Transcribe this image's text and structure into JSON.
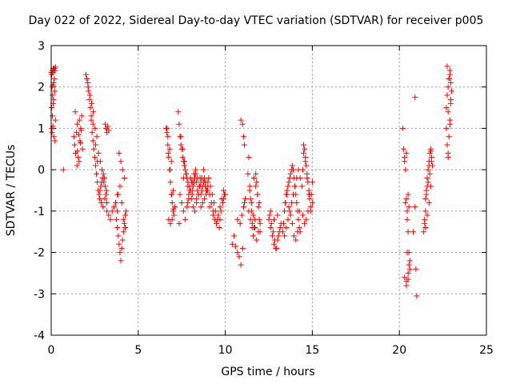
{
  "chart_data": {
    "type": "scatter",
    "title": "Day 022 of 2022, Sidereal Day-to-day VTEC variation (SDTVAR) for receiver p005",
    "xlabel": "GPS time / hours",
    "ylabel": "SDTVAR / TECUs",
    "xlim": [
      0,
      25
    ],
    "ylim": [
      -4,
      3
    ],
    "xticks": [
      0,
      5,
      10,
      15,
      20,
      25
    ],
    "yticks": [
      -4,
      -3,
      -2,
      -1,
      0,
      1,
      2,
      3
    ],
    "grid": true,
    "marker": "+",
    "marker_color": "#ff0000",
    "series": [
      {
        "name": "SDTVAR",
        "x": [
          0.0,
          0.03,
          0.06,
          0.09,
          0.12,
          0.15,
          0.18,
          0.21,
          0.25,
          0.05,
          0.1,
          0.15,
          0.08,
          0.12,
          0.2,
          0.03,
          0.05,
          0.1,
          0.15,
          0.22,
          0.02,
          0.07,
          0.13,
          0.18,
          0.24,
          0.7,
          1.3,
          1.35,
          1.4,
          1.45,
          1.5,
          1.55,
          1.6,
          1.65,
          1.7,
          1.75,
          1.8,
          1.38,
          1.48,
          1.58,
          1.68,
          1.5,
          1.62,
          1.72,
          2.0,
          2.05,
          2.1,
          2.15,
          2.2,
          2.25,
          2.3,
          2.35,
          2.4,
          2.45,
          2.5,
          2.55,
          2.6,
          2.65,
          2.7,
          2.75,
          2.8,
          2.85,
          2.9,
          2.95,
          3.0,
          3.05,
          3.1,
          3.15,
          3.2,
          2.12,
          2.22,
          2.32,
          2.42,
          2.52,
          2.62,
          2.72,
          2.82,
          2.92,
          3.02,
          2.3,
          2.4,
          2.55,
          2.65,
          2.78,
          2.88,
          2.98,
          3.08,
          3.18,
          3.1,
          3.15,
          3.2,
          3.25,
          3.3,
          3.2,
          3.3,
          3.4,
          3.5,
          3.6,
          3.7,
          3.8,
          3.8,
          3.85,
          3.9,
          3.95,
          4.0,
          4.05,
          4.1,
          4.15,
          4.2,
          4.25,
          4.3,
          3.9,
          4.0,
          4.1,
          4.2,
          3.85,
          3.95,
          4.05,
          4.15,
          4.25,
          3.75,
          3.8,
          6.6,
          6.65,
          6.7,
          6.75,
          6.8,
          6.85,
          6.9,
          6.95,
          7.0,
          7.05,
          7.1,
          6.7,
          6.8,
          6.9,
          7.0,
          6.75,
          6.85,
          6.95,
          6.65,
          6.72,
          6.82,
          6.92,
          7.02,
          7.3,
          7.35,
          7.4,
          7.45,
          7.5,
          7.55,
          7.6,
          7.65,
          7.7,
          7.75,
          7.8,
          7.85,
          7.9,
          7.95,
          8.0,
          8.05,
          8.1,
          8.15,
          8.2,
          8.25,
          8.3,
          8.35,
          8.4,
          8.45,
          8.5,
          8.55,
          8.6,
          8.65,
          8.7,
          8.75,
          8.8,
          8.85,
          8.9,
          8.95,
          9.0,
          7.4,
          7.5,
          7.6,
          7.7,
          7.8,
          7.9,
          8.0,
          8.1,
          8.2,
          8.3,
          8.4,
          8.5,
          8.6,
          8.7,
          8.8,
          8.9,
          9.0,
          7.45,
          7.55,
          7.65,
          7.75,
          7.85,
          7.95,
          8.05,
          8.15,
          8.25,
          8.35,
          8.45,
          8.55,
          8.65,
          8.75,
          8.85,
          8.95,
          7.35,
          7.6,
          7.85,
          8.1,
          8.35,
          8.6,
          9.0,
          9.1,
          9.2,
          9.3,
          9.4,
          9.5,
          9.6,
          9.7,
          9.8,
          9.9,
          10.0,
          9.05,
          9.15,
          9.25,
          9.35,
          9.45,
          9.55,
          9.65,
          9.75,
          9.85,
          9.95,
          9.1,
          9.3,
          9.5,
          9.7,
          9.9,
          10.4,
          10.5,
          10.6,
          10.7,
          10.8,
          10.9,
          11.0,
          10.9,
          11.0,
          11.05,
          11.1,
          10.7,
          10.85,
          10.95,
          11.05,
          11.1,
          11.15,
          11.3,
          11.35,
          11.4,
          11.45,
          11.5,
          11.55,
          11.6,
          11.65,
          11.7,
          11.75,
          11.8,
          11.85,
          11.9,
          11.95,
          12.0,
          11.4,
          11.5,
          11.6,
          11.7,
          11.8,
          11.9,
          12.0,
          11.35,
          11.45,
          11.55,
          11.65,
          11.75,
          11.85,
          11.95,
          12.5,
          12.6,
          12.7,
          12.8,
          12.9,
          13.0,
          13.1,
          13.2,
          12.55,
          12.65,
          12.75,
          12.85,
          12.95,
          13.05,
          13.15,
          12.6,
          12.8,
          13.0,
          13.3,
          13.35,
          13.4,
          13.45,
          13.5,
          13.55,
          13.6,
          13.65,
          13.7,
          13.75,
          13.8,
          13.85,
          13.9,
          13.95,
          14.0,
          14.05,
          14.1,
          14.15,
          14.2,
          14.25,
          14.3,
          13.4,
          13.5,
          13.6,
          13.7,
          13.8,
          13.9,
          14.0,
          14.1,
          14.2,
          14.3,
          13.45,
          13.55,
          13.65,
          13.75,
          13.85,
          13.95,
          14.05,
          14.15,
          14.25,
          14.4,
          14.45,
          14.5,
          14.55,
          14.6,
          14.65,
          14.7,
          14.75,
          14.8,
          14.85,
          14.9,
          14.95,
          15.0,
          14.5,
          14.6,
          14.7,
          14.8,
          14.9,
          15.0,
          14.45,
          14.55,
          14.65,
          14.75,
          14.85,
          20.2,
          20.25,
          20.3,
          20.35,
          20.4,
          20.45,
          20.5,
          20.55,
          20.6,
          20.3,
          20.4,
          20.5,
          20.6,
          20.35,
          20.45,
          20.55,
          20.3,
          20.4,
          20.5,
          20.45,
          20.55,
          20.4,
          20.5,
          20.9,
          20.95,
          21.0,
          20.8,
          20.9,
          21.4,
          21.45,
          21.5,
          21.55,
          21.6,
          21.65,
          21.7,
          21.75,
          21.8,
          21.85,
          21.9,
          21.5,
          21.6,
          21.7,
          21.8,
          21.55,
          21.65,
          21.75,
          21.85,
          21.45,
          21.5,
          21.6,
          21.7,
          21.8,
          22.7,
          22.75,
          22.8,
          22.85,
          22.9,
          22.95,
          23.0,
          22.75,
          22.8,
          22.85,
          22.9,
          22.95,
          22.7,
          22.8,
          22.9,
          22.75,
          22.85,
          22.95,
          22.8,
          22.9
        ],
        "y": [
          2.35,
          2.3,
          2.4,
          2.35,
          2.45,
          2.4,
          2.45,
          2.4,
          2.48,
          2.0,
          2.05,
          2.1,
          1.8,
          1.6,
          1.9,
          1.0,
          0.9,
          1.05,
          0.8,
          0.7,
          1.5,
          1.3,
          1.7,
          2.2,
          1.2,
          0.0,
          0.8,
          0.6,
          0.4,
          0.9,
          1.1,
          0.3,
          0.2,
          0.7,
          1.0,
          1.3,
          0.5,
          1.4,
          0.1,
          0.85,
          0.65,
          0.45,
          1.2,
          0.95,
          2.3,
          2.2,
          2.1,
          1.9,
          1.7,
          1.5,
          1.2,
          0.9,
          0.7,
          0.5,
          0.3,
          0.1,
          -0.1,
          -0.3,
          -0.5,
          -0.6,
          -0.5,
          -0.4,
          -0.3,
          -0.2,
          -0.1,
          -0.2,
          -0.4,
          -0.6,
          -0.8,
          2.0,
          1.8,
          1.6,
          1.4,
          1.0,
          0.8,
          0.4,
          0.2,
          0.0,
          -0.3,
          1.3,
          1.1,
          0.6,
          0.2,
          -0.7,
          -0.8,
          -0.9,
          -0.7,
          -0.5,
          1.1,
          1.0,
          0.9,
          1.05,
          0.95,
          -1.0,
          -1.1,
          -1.2,
          -1.0,
          -0.9,
          -0.8,
          -0.6,
          -1.4,
          -1.6,
          -1.8,
          -2.0,
          -2.2,
          -1.9,
          -1.7,
          -1.5,
          -1.3,
          -1.1,
          -1.0,
          0.4,
          0.2,
          0.0,
          -0.2,
          -0.6,
          -0.4,
          -0.8,
          -1.2,
          -1.4,
          -1.2,
          -1.0,
          1.0,
          0.9,
          0.6,
          0.3,
          0.0,
          -0.3,
          -0.6,
          -0.8,
          -1.0,
          -1.1,
          -0.9,
          0.8,
          0.5,
          0.2,
          -0.5,
          -1.2,
          -1.3,
          -1.2,
          1.0,
          0.4,
          0.0,
          -0.6,
          -0.95,
          1.4,
          1.1,
          0.8,
          0.6,
          0.5,
          0.3,
          0.2,
          0.1,
          0.0,
          -0.1,
          -0.2,
          -0.4,
          -0.6,
          -0.4,
          -0.2,
          -0.3,
          -0.5,
          -0.4,
          -0.3,
          -0.2,
          -0.1,
          -0.3,
          -0.5,
          -0.6,
          -0.4,
          -0.2,
          -0.3,
          -0.5,
          -0.4,
          -0.3,
          -0.2,
          -0.4,
          -0.6,
          -0.5,
          -0.4,
          -0.6,
          -0.8,
          -1.0,
          -1.2,
          -0.9,
          -0.7,
          -0.5,
          -0.3,
          -0.1,
          0.0,
          -0.2,
          -0.4,
          -0.6,
          -0.8,
          -0.7,
          -0.5,
          -0.3,
          0.8,
          0.5,
          0.2,
          -0.1,
          -0.3,
          -0.5,
          -0.7,
          -0.9,
          -1.0,
          -0.8,
          -0.6,
          -0.4,
          -0.2,
          0.0,
          -0.3,
          -0.5,
          -1.3,
          -0.2,
          -0.8,
          -0.6,
          -0.7,
          -0.9,
          -0.5,
          -0.6,
          -0.8,
          -1.0,
          -1.2,
          -1.3,
          -1.1,
          -0.9,
          -0.7,
          -0.5,
          -0.6,
          -0.2,
          -0.4,
          -0.6,
          -0.8,
          -1.0,
          -1.2,
          -1.4,
          -1.0,
          -0.8,
          -0.6,
          -0.9,
          -1.1,
          -1.3,
          -1.2,
          -0.7,
          -1.8,
          -1.6,
          -1.85,
          -2.0,
          -2.1,
          -2.3,
          -1.9,
          1.2,
          1.1,
          0.8,
          0.6,
          -1.2,
          -1.3,
          -1.1,
          -0.9,
          -0.8,
          -0.7,
          -0.1,
          0.3,
          -0.4,
          -0.7,
          -1.0,
          -1.3,
          -1.6,
          -1.4,
          -1.2,
          -0.4,
          -0.3,
          -0.6,
          -0.9,
          -1.2,
          -1.5,
          -0.5,
          -0.8,
          -1.1,
          -1.4,
          -1.7,
          -1.5,
          -1.3,
          -1.0,
          -1.2,
          -1.4,
          -0.2,
          -0.1,
          -0.6,
          -0.8,
          -1.2,
          -1.4,
          -1.6,
          -1.8,
          -1.9,
          -1.7,
          -1.5,
          -1.3,
          -1.1,
          -1.3,
          -1.5,
          -1.7,
          -1.9,
          -1.6,
          -1.4,
          -1.0,
          -1.2,
          -1.1,
          -1.5,
          -1.3,
          -1.0,
          -0.8,
          -0.6,
          -0.5,
          -0.4,
          -0.3,
          -0.2,
          -0.1,
          0.0,
          0.1,
          0.0,
          -0.2,
          -0.4,
          -0.6,
          -0.8,
          -1.0,
          -1.2,
          -1.4,
          -1.5,
          -1.6,
          -1.4,
          -1.2,
          -1.0,
          -0.8,
          -0.6,
          -0.4,
          -0.2,
          0.0,
          -0.2,
          -0.8,
          -0.6,
          -0.9,
          -1.1,
          -1.3,
          -1.6,
          -1.7,
          -1.5,
          -1.0,
          -0.4,
          0.0,
          0.4,
          0.5,
          0.3,
          0.1,
          -0.1,
          -0.3,
          -0.5,
          -0.7,
          -0.9,
          -0.6,
          -0.3,
          0.6,
          0.2,
          -0.2,
          -0.6,
          -1.0,
          -0.8,
          -1.1,
          -1.3,
          -1.2,
          -1.0,
          -0.6,
          1.0,
          0.5,
          0.3,
          0.0,
          -0.7,
          -1.2,
          -1.5,
          -2.0,
          -2.4,
          -2.6,
          -2.7,
          -2.5,
          -2.2,
          -0.8,
          -1.0,
          -0.9,
          0.2,
          0.4,
          -0.6,
          -2.0,
          -2.3,
          -2.8,
          -2.65,
          1.75,
          -2.4,
          -3.05,
          -1.5,
          -0.9,
          -1.5,
          -1.3,
          -1.0,
          -0.6,
          -0.2,
          0.0,
          0.2,
          0.4,
          0.5,
          0.3,
          0.1,
          -1.4,
          -1.1,
          -0.8,
          -0.4,
          -0.5,
          -0.3,
          -0.1,
          0.2,
          -1.2,
          -0.7,
          -0.4,
          0.1,
          0.45,
          1.5,
          1.8,
          2.0,
          2.2,
          2.4,
          2.1,
          1.9,
          0.6,
          0.4,
          0.8,
          1.2,
          1.6,
          1.0,
          1.4,
          2.3,
          2.5,
          2.2,
          1.7,
          0.3,
          1.1
        ]
      }
    ]
  }
}
